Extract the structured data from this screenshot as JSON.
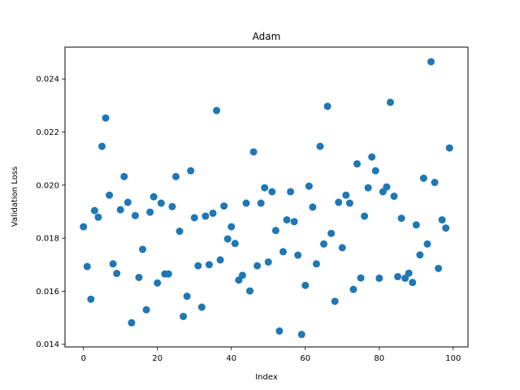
{
  "chart_data": {
    "type": "scatter",
    "title": "Adam",
    "xlabel": "Index",
    "ylabel": "Validation Loss",
    "xlim": [
      -5,
      104
    ],
    "ylim": [
      0.0139,
      0.0252
    ],
    "xticks": [
      0,
      20,
      40,
      60,
      80,
      100
    ],
    "xtick_labels": [
      "0",
      "20",
      "40",
      "60",
      "80",
      "100"
    ],
    "yticks": [
      0.014,
      0.016,
      0.018,
      0.02,
      0.022,
      0.024
    ],
    "ytick_labels": [
      "0.014",
      "0.016",
      "0.018",
      "0.020",
      "0.022",
      "0.024"
    ],
    "grid": false,
    "color": "#1f77b4",
    "x": [
      0,
      1,
      2,
      3,
      4,
      5,
      6,
      7,
      8,
      9,
      10,
      11,
      12,
      13,
      14,
      15,
      16,
      17,
      18,
      19,
      20,
      21,
      22,
      23,
      24,
      25,
      26,
      27,
      28,
      29,
      30,
      31,
      32,
      33,
      34,
      35,
      36,
      37,
      38,
      39,
      40,
      41,
      42,
      43,
      44,
      45,
      46,
      47,
      48,
      49,
      50,
      51,
      52,
      53,
      54,
      55,
      56,
      57,
      58,
      59,
      60,
      61,
      62,
      63,
      64,
      65,
      66,
      67,
      68,
      69,
      70,
      71,
      72,
      73,
      74,
      75,
      76,
      77,
      78,
      79,
      80,
      81,
      82,
      83,
      84,
      85,
      86,
      87,
      88,
      89,
      90,
      91,
      92,
      93,
      94,
      95,
      96,
      97,
      98,
      99
    ],
    "y": [
      0.01843,
      0.01693,
      0.0157,
      0.01904,
      0.01879,
      0.02146,
      0.02253,
      0.01962,
      0.01703,
      0.01667,
      0.01907,
      0.02032,
      0.01935,
      0.01481,
      0.01885,
      0.01652,
      0.01758,
      0.0153,
      0.01898,
      0.01956,
      0.01631,
      0.01932,
      0.01665,
      0.01665,
      0.01919,
      0.02032,
      0.01826,
      0.01505,
      0.01581,
      0.02054,
      0.01877,
      0.01696,
      0.0154,
      0.01883,
      0.017,
      0.01894,
      0.02281,
      0.01718,
      0.01921,
      0.01797,
      0.01843,
      0.0178,
      0.01642,
      0.0166,
      0.01932,
      0.01601,
      0.02125,
      0.01696,
      0.01932,
      0.0199,
      0.0171,
      0.01975,
      0.01829,
      0.0145,
      0.01749,
      0.01869,
      0.01975,
      0.01862,
      0.01736,
      0.01437,
      0.01622,
      0.01996,
      0.01917,
      0.01703,
      0.02146,
      0.01778,
      0.02297,
      0.01818,
      0.01562,
      0.01935,
      0.01764,
      0.01962,
      0.01932,
      0.01607,
      0.0208,
      0.0165,
      0.01883,
      0.0199,
      0.02106,
      0.02054,
      0.01649,
      0.01975,
      0.01993,
      0.02312,
      0.01958,
      0.01655,
      0.01875,
      0.01649,
      0.01668,
      0.01633,
      0.0185,
      0.01737,
      0.02026,
      0.01778,
      0.02465,
      0.0201,
      0.01686,
      0.01869,
      0.01838,
      0.0214
    ]
  }
}
